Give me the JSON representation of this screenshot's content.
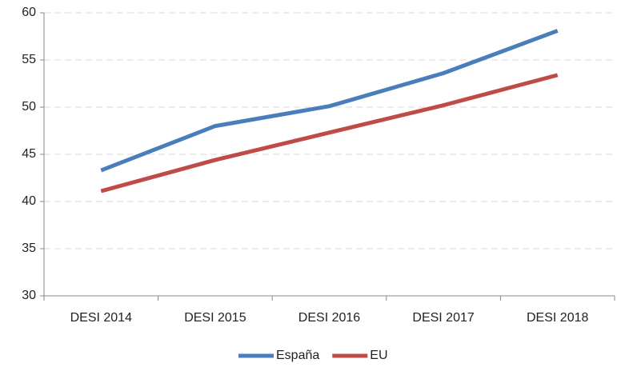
{
  "chart_data": {
    "type": "line",
    "categories": [
      "DESI 2014",
      "DESI 2015",
      "DESI 2016",
      "DESI 2017",
      "DESI 2018"
    ],
    "series": [
      {
        "name": "España",
        "color": "#4a7ebb",
        "values": [
          43.3,
          48.0,
          50.1,
          53.6,
          58.1
        ]
      },
      {
        "name": "EU",
        "color": "#be4b48",
        "values": [
          41.1,
          44.4,
          47.3,
          50.2,
          53.4
        ]
      }
    ],
    "ylim": [
      30,
      60
    ],
    "yticks": [
      30,
      35,
      40,
      45,
      50,
      55,
      60
    ],
    "grid": true,
    "legend": "bottom"
  }
}
